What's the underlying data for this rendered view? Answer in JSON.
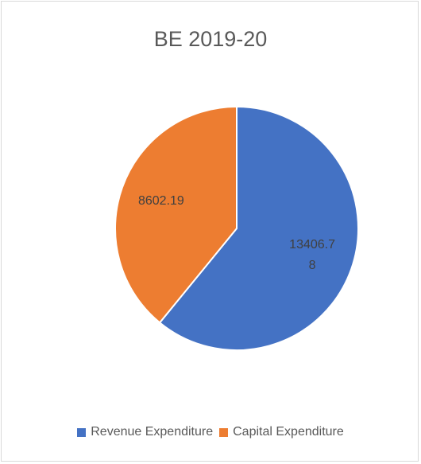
{
  "chart_data": {
    "type": "pie",
    "title": "BE 2019-20",
    "categories": [
      "Revenue Expenditure",
      "Capital Expenditure"
    ],
    "values": [
      13406.78,
      8602.19
    ],
    "colors": [
      "#4472c4",
      "#ed7d31"
    ],
    "legend": "bottom"
  }
}
